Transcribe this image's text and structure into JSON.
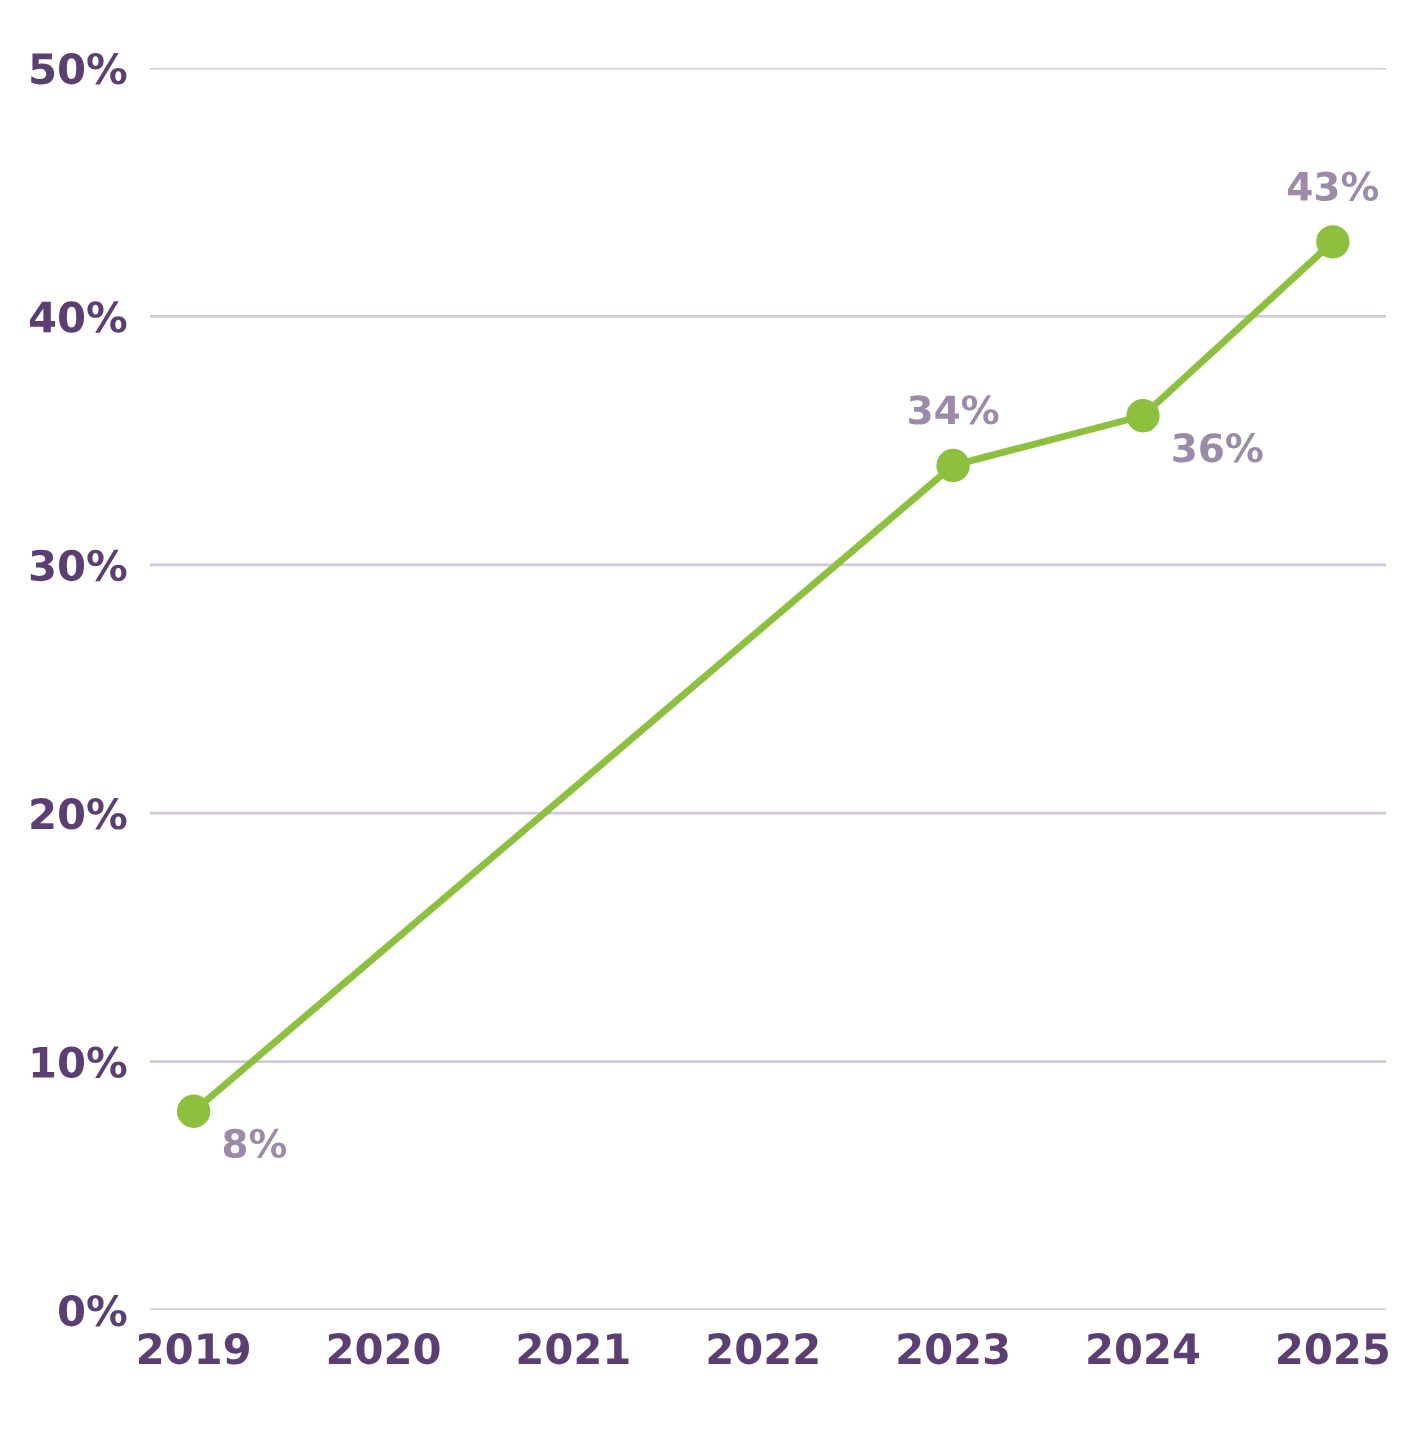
{
  "chart_data": {
    "type": "line",
    "x": [
      2019,
      2023,
      2024,
      2025
    ],
    "series": [
      {
        "color": "#8dc03f",
        "values": [
          8,
          34,
          36,
          43
        ],
        "value_labels": [
          "8%",
          "34%",
          "36%",
          "43%"
        ]
      }
    ],
    "xlim": [
      2018.77,
      2025.28
    ],
    "xticks": [
      2019,
      2020,
      2021,
      2022,
      2023,
      2024,
      2025
    ],
    "ylim": [
      0,
      50
    ],
    "yticks": [
      {
        "value": 0,
        "label": "0%"
      },
      {
        "value": 10,
        "label": "10%"
      },
      {
        "value": 20,
        "label": "20%"
      },
      {
        "value": 30,
        "label": "30%"
      },
      {
        "value": 40,
        "label": "40%"
      },
      {
        "value": 50,
        "label": "50%"
      }
    ],
    "grid": "y",
    "marker": "circle",
    "line_style": "solid",
    "legend": false
  }
}
